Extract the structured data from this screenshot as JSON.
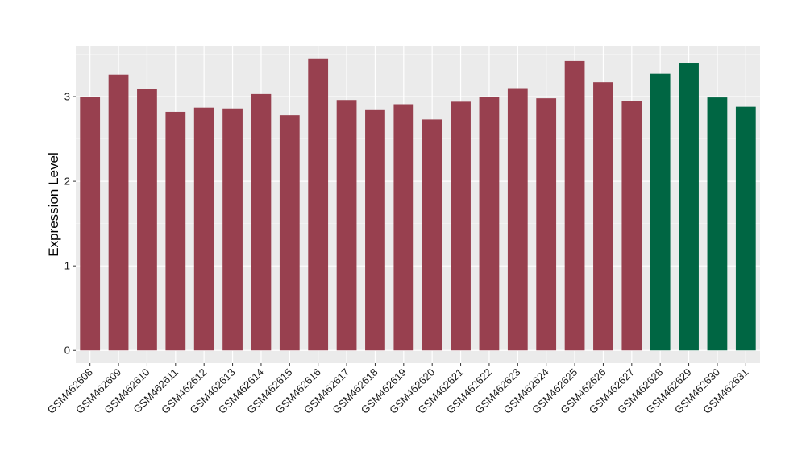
{
  "chart_data": {
    "type": "bar",
    "title": "",
    "xlabel": "",
    "ylabel": "Expression Level",
    "ylim": [
      -0.15,
      3.6
    ],
    "yticks": [
      0,
      1,
      2,
      3
    ],
    "grid": true,
    "background": "#EBEBEB",
    "categories": [
      "GSM462608",
      "GSM462609",
      "GSM462610",
      "GSM462611",
      "GSM462612",
      "GSM462613",
      "GSM462614",
      "GSM462615",
      "GSM462616",
      "GSM462617",
      "GSM462618",
      "GSM462619",
      "GSM462620",
      "GSM462621",
      "GSM462622",
      "GSM462623",
      "GSM462624",
      "GSM462625",
      "GSM462626",
      "GSM462627",
      "GSM462628",
      "GSM462629",
      "GSM462630",
      "GSM462631"
    ],
    "values": [
      3.0,
      3.26,
      3.09,
      2.82,
      2.87,
      2.86,
      3.03,
      2.78,
      3.45,
      2.96,
      2.85,
      2.91,
      2.73,
      2.94,
      3.0,
      3.1,
      2.98,
      3.42,
      3.17,
      2.95,
      3.27,
      3.4,
      2.99,
      2.88
    ],
    "groups": [
      "a",
      "a",
      "a",
      "a",
      "a",
      "a",
      "a",
      "a",
      "a",
      "a",
      "a",
      "a",
      "a",
      "a",
      "a",
      "a",
      "a",
      "a",
      "a",
      "a",
      "b",
      "b",
      "b",
      "b"
    ],
    "group_colors": {
      "a": "#98404F",
      "b": "#006643"
    }
  }
}
